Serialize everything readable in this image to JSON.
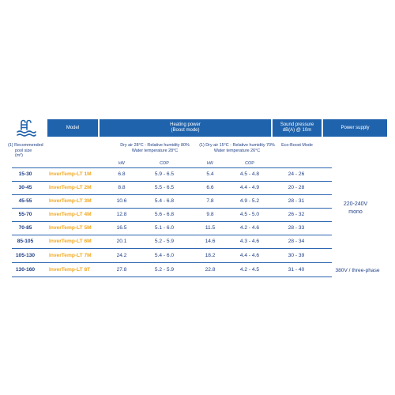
{
  "header": {
    "model": "Model",
    "heating_line1": "Heating power",
    "heating_line2": "(Boost mode)",
    "sound_line1": "Sound pressure",
    "sound_line2": "dB(A) @ 10m",
    "supply": "Power supply"
  },
  "subheader": {
    "pool_size_line1": "(1) Recommended",
    "pool_size_line2": "pool size",
    "pool_size_line3": "(m³)",
    "cond1_line1": "Dry air 28°C - Relative humidity 80%",
    "cond1_line2": "Water temperature 28°C",
    "cond2_line1": "(1) Dry air 15°C - Relative humidity 70%",
    "cond2_line2": "Water temperature 26°C",
    "eco": "Eco-Boost Mode",
    "kw1": "kW",
    "cop1": "COP",
    "kw2": "kW",
    "cop2": "COP"
  },
  "rows": [
    {
      "size": "15-30",
      "model": "InverTemp-LT 1M",
      "kw1": "6.8",
      "cop1": "5.9 - 6.5",
      "kw2": "5.4",
      "cop2": "4.5 - 4.8",
      "db": "24 - 26"
    },
    {
      "size": "30-45",
      "model": "InverTemp-LT 2M",
      "kw1": "8.8",
      "cop1": "5.5 - 6.5",
      "kw2": "6.6",
      "cop2": "4.4 - 4.9",
      "db": "20 - 28"
    },
    {
      "size": "45-55",
      "model": "InverTemp-LT 3M",
      "kw1": "10.6",
      "cop1": "5.4 - 6.8",
      "kw2": "7.8",
      "cop2": "4.9 - 5.2",
      "db": "28 - 31"
    },
    {
      "size": "55-70",
      "model": "InverTemp-LT 4M",
      "kw1": "12.8",
      "cop1": "5.6 - 6.8",
      "kw2": "9.8",
      "cop2": "4.5 - 5.0",
      "db": "26 - 32"
    },
    {
      "size": "70-85",
      "model": "InverTemp-LT 5M",
      "kw1": "16.5",
      "cop1": "5.1 - 6.0",
      "kw2": "11.5",
      "cop2": "4.2 - 4.6",
      "db": "28 - 33"
    },
    {
      "size": "85-105",
      "model": "InverTemp-LT 6M",
      "kw1": "20.1",
      "cop1": "5.2 - 5.9",
      "kw2": "14.6",
      "cop2": "4.3 - 4.6",
      "db": "28 - 34"
    },
    {
      "size": "105-130",
      "model": "InverTemp-LT 7M",
      "kw1": "24.2",
      "cop1": "5.4 - 6.0",
      "kw2": "18.2",
      "cop2": "4.4 - 4.6",
      "db": "30 - 39"
    },
    {
      "size": "130-160",
      "model": "InverTemp-LT 8T",
      "kw1": "27.8",
      "cop1": "5.2 - 5.9",
      "kw2": "22.8",
      "cop2": "4.2 - 4.5",
      "db": "31 - 40"
    }
  ],
  "supply": {
    "mono_line1": "220-240V",
    "mono_line2": "mono",
    "three": "380V / three-phase"
  },
  "icons": {
    "pool": "pool-ladder-icon"
  },
  "colors": {
    "header_bg": "#1f63ad",
    "text": "#1f3f86",
    "model": "#f2a81d"
  }
}
